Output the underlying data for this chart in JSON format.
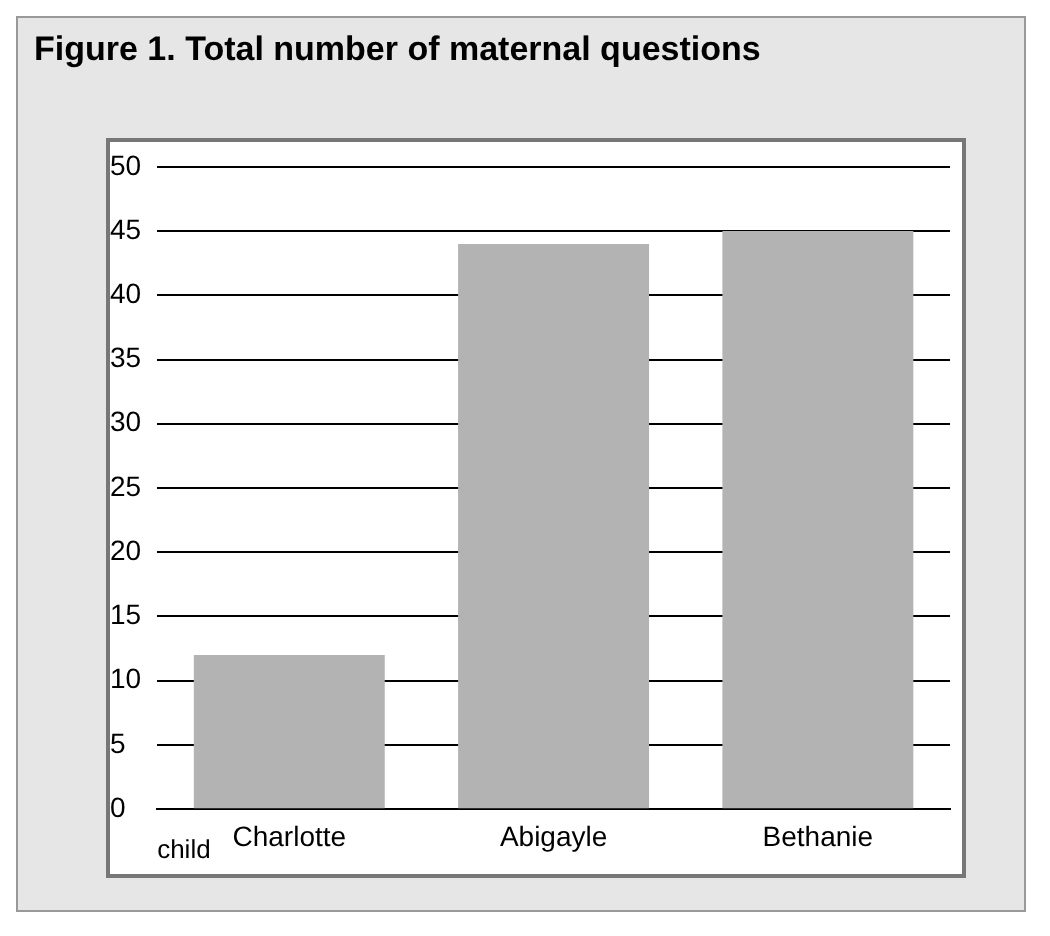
{
  "chart_data": {
    "type": "bar",
    "title": "Figure 1. Total number of maternal questions",
    "xlabel": "child",
    "categories": [
      "Charlotte",
      "Abigayle",
      "Bethanie"
    ],
    "values": [
      12,
      44,
      45
    ],
    "color": "#b3b3b3",
    "ylim": [
      0,
      50
    ],
    "yticks": [
      0,
      5,
      10,
      15,
      20,
      25,
      30,
      35,
      40,
      45,
      50
    ],
    "grid": "y",
    "legend": false
  }
}
